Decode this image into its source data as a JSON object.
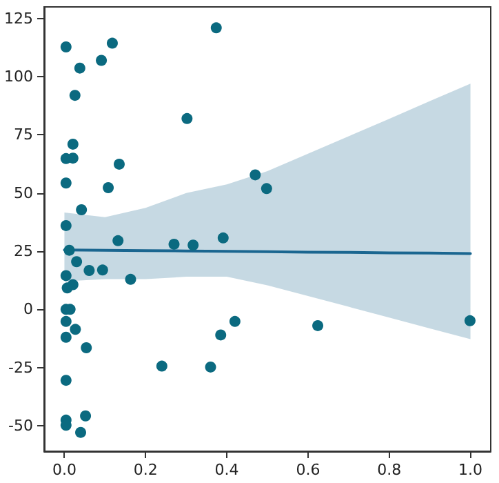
{
  "chart_data": {
    "type": "scatter",
    "xlim": [
      -0.05,
      1.05
    ],
    "ylim": [
      -61,
      130
    ],
    "xticks": [
      {
        "value": 0,
        "label": "0.0"
      },
      {
        "value": 0.2,
        "label": "0.2"
      },
      {
        "value": 0.4,
        "label": "0.4"
      },
      {
        "value": 0.6,
        "label": "0.6"
      },
      {
        "value": 0.8,
        "label": "0.8"
      },
      {
        "value": 1,
        "label": "1.0"
      }
    ],
    "yticks": [
      -50,
      -25,
      0,
      25,
      50,
      75,
      100,
      125
    ],
    "series": [
      {
        "color": "#0b6a80",
        "marker": "circle",
        "x": [
          0.004,
          0.118,
          0.374,
          0.091,
          0.038,
          0.026,
          0.302,
          0.021,
          0.004,
          0.021,
          0.135,
          0.004,
          0.108,
          0.042,
          0.004,
          0.132,
          0.27,
          0.317,
          0.391,
          0.47,
          0.498,
          0.624,
          0.999,
          0.012,
          0.03,
          0.004,
          0.061,
          0.094,
          0.163,
          0.021,
          0.007,
          0.004,
          0.014,
          0.004,
          0.027,
          0.004,
          0.054,
          0.24,
          0.36,
          0.385,
          0.42,
          0.004,
          0.004,
          0.004,
          0.052,
          0.04
        ],
        "values": [
          112.8,
          114.4,
          121,
          107,
          103.7,
          92,
          82,
          71,
          64.8,
          65,
          62.4,
          54.3,
          52.3,
          42.8,
          36,
          29.5,
          28,
          27.6,
          30.7,
          57.8,
          51.9,
          -7,
          -4.9,
          25.4,
          20.5,
          14.5,
          16.7,
          16.9,
          12.9,
          10.6,
          9.2,
          0,
          0,
          -5.2,
          -8.6,
          -12,
          -16.5,
          -24.4,
          -24.8,
          -11,
          -5.2,
          -30.5,
          -47.6,
          -49.8,
          -45.8,
          -52.9
        ]
      },
      {
        "type": "line",
        "color": "#1a6690",
        "marker": "none",
        "line_style": "solid",
        "x": [
          0,
          0.1,
          0.2,
          0.3,
          0.4,
          0.5,
          0.6,
          0.7,
          0.8,
          0.9,
          1.0
        ],
        "values": [
          25.5,
          25.4,
          25.2,
          25.1,
          24.9,
          24.8,
          24.6,
          24.5,
          24.3,
          24.2,
          24
        ],
        "lower": [
          12,
          13,
          13,
          14,
          14,
          10.3,
          5.7,
          1.1,
          -3.5,
          -8.2,
          -12.8
        ],
        "upper": [
          41.6,
          39.6,
          43.6,
          50,
          53.7,
          59.4,
          66.9,
          74.4,
          81.9,
          89.5,
          97
        ]
      }
    ]
  }
}
